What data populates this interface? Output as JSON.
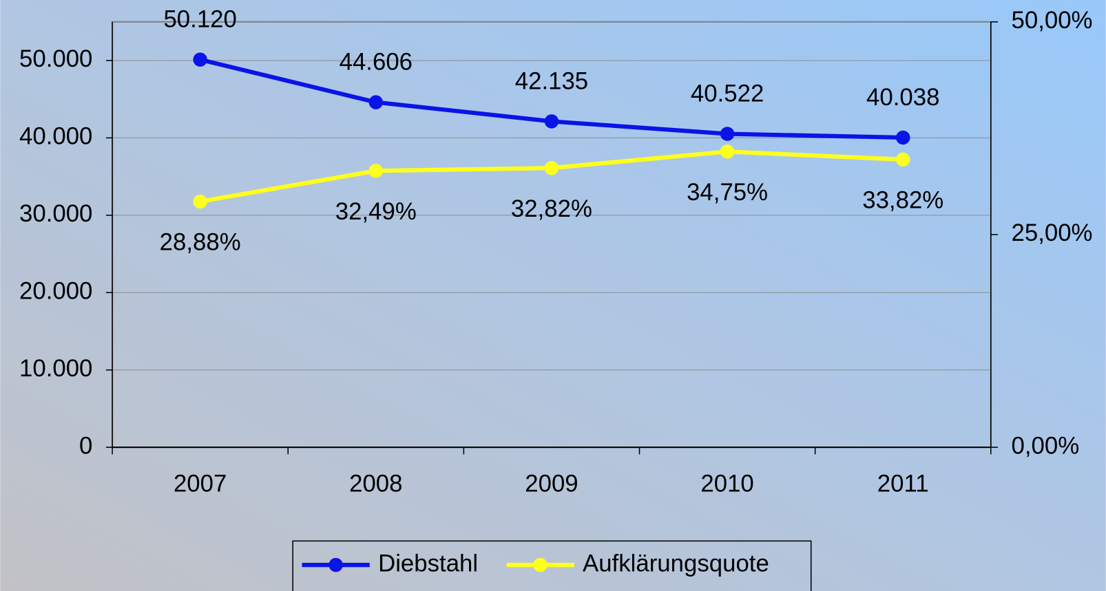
{
  "chart_data": {
    "type": "line",
    "categories": [
      "2007",
      "2008",
      "2009",
      "2010",
      "2011"
    ],
    "series": [
      {
        "name": "Diebstahl",
        "color": "#0a14e6",
        "values": [
          50120,
          44606,
          42135,
          40522,
          40038
        ],
        "value_labels": [
          "50.120",
          "44.606",
          "42.135",
          "40.522",
          "40.038"
        ]
      },
      {
        "name": "Aufklärungsquote",
        "color": "#ffff1e",
        "axis": "y2",
        "values": [
          28.88,
          32.49,
          32.82,
          34.75,
          33.82
        ],
        "value_labels": [
          "28,88%",
          "32,49%",
          "32,82%",
          "34,75%",
          "33,82%"
        ]
      }
    ],
    "ylim": [
      0,
      55000
    ],
    "yticks": [
      0,
      {
        "value": 10000,
        "label": "10.000"
      },
      {
        "value": 20000,
        "label": "20.000"
      },
      {
        "value": 30000,
        "label": "30.000"
      },
      {
        "value": 40000,
        "label": "40.000"
      },
      {
        "value": 50000,
        "label": "50.000"
      }
    ],
    "y2lim": [
      0,
      50
    ],
    "y2ticks": [
      {
        "value": 0,
        "label": "0,00%"
      },
      {
        "value": 25,
        "label": "25,00%"
      },
      {
        "value": 50,
        "label": "50,00%"
      }
    ],
    "grid": true,
    "legend": "bottom"
  }
}
